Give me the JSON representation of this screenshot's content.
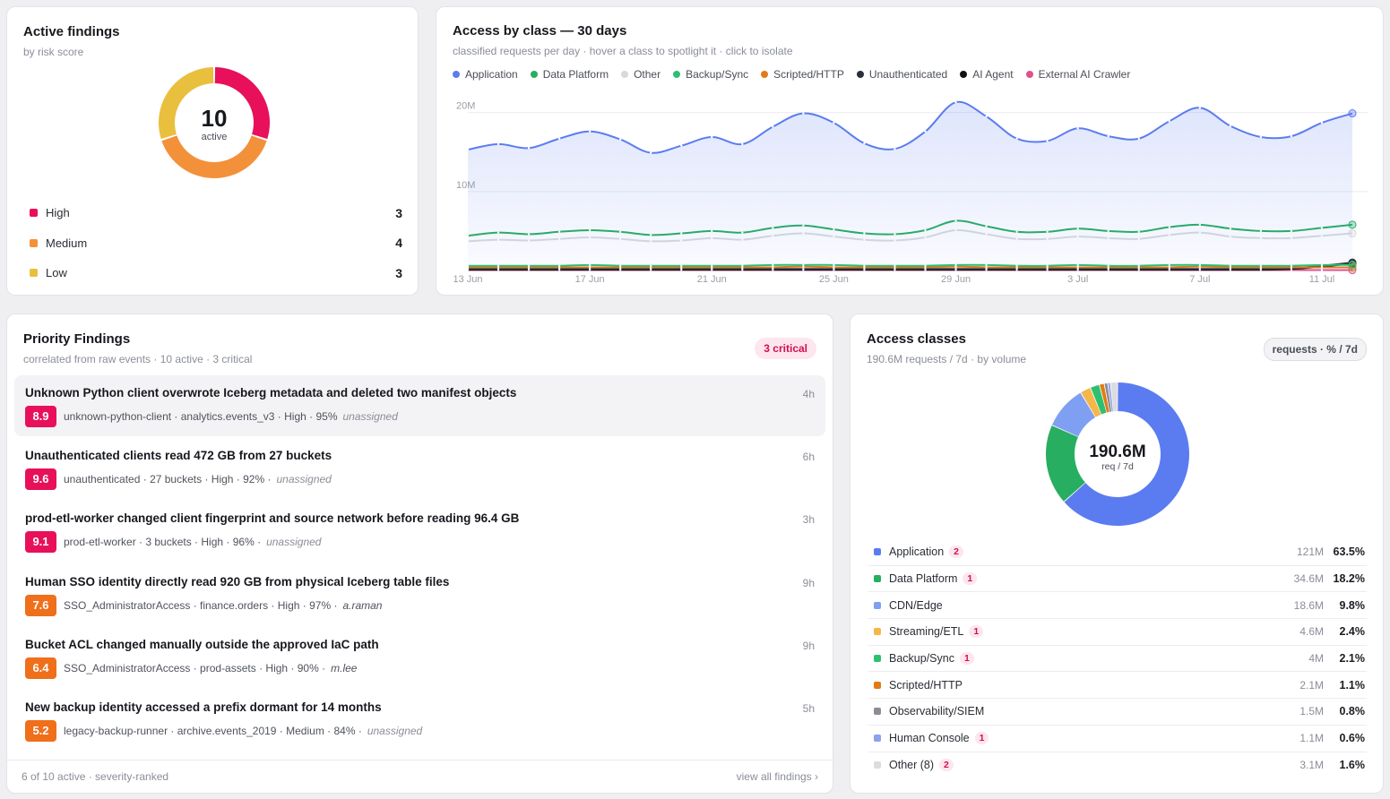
{
  "findings_card": {
    "title": "Active findings",
    "subtitle": "by risk score",
    "total": "10",
    "total_label": "active",
    "levels": [
      {
        "label": "High",
        "count": "3",
        "color": "#e8105a",
        "value": 3
      },
      {
        "label": "Medium",
        "count": "4",
        "color": "#f3913a",
        "value": 4
      },
      {
        "label": "Low",
        "count": "3",
        "color": "#e9bf3e",
        "value": 3
      }
    ]
  },
  "access_chart": {
    "title": "Access by class — 30 days",
    "subtitle": "classified requests per day · hover a class to spotlight it · click to isolate",
    "legend": [
      {
        "label": "Application",
        "color": "#5b7cf0"
      },
      {
        "label": "Data Platform",
        "color": "#27ae60"
      },
      {
        "label": "Other",
        "color": "#d9d9dc"
      },
      {
        "label": "Backup/Sync",
        "color": "#2fbf71"
      },
      {
        "label": "Scripted/HTTP",
        "color": "#e07b16"
      },
      {
        "label": "Unauthenticated",
        "color": "#2b2f3a"
      },
      {
        "label": "AI Agent",
        "color": "#111111"
      },
      {
        "label": "External AI Crawler",
        "color": "#e0508f"
      }
    ]
  },
  "chart_data": {
    "type": "area",
    "title": "Access by class — 30 days",
    "x": [
      "13 Jun",
      "14 Jun",
      "15 Jun",
      "16 Jun",
      "17 Jun",
      "18 Jun",
      "19 Jun",
      "20 Jun",
      "21 Jun",
      "22 Jun",
      "23 Jun",
      "24 Jun",
      "25 Jun",
      "26 Jun",
      "27 Jun",
      "28 Jun",
      "29 Jun",
      "30 Jun",
      "1 Jul",
      "2 Jul",
      "3 Jul",
      "4 Jul",
      "5 Jul",
      "6 Jul",
      "7 Jul",
      "8 Jul",
      "9 Jul",
      "10 Jul",
      "11 Jul",
      "12 Jul"
    ],
    "x_ticks": [
      "13 Jun",
      "17 Jun",
      "21 Jun",
      "25 Jun",
      "29 Jun",
      "3 Jul",
      "7 Jul",
      "11 Jul"
    ],
    "y_ticks": [
      "10M",
      "20M"
    ],
    "ylim": [
      0,
      22
    ],
    "unit": "M requests",
    "series": [
      {
        "name": "Application",
        "color": "#5b7cf0",
        "values": [
          15.3,
          16.0,
          15.5,
          16.7,
          17.6,
          16.6,
          14.9,
          15.8,
          16.9,
          16.0,
          18.2,
          19.9,
          18.7,
          16.1,
          15.4,
          17.6,
          21.3,
          19.5,
          16.7,
          16.4,
          18.0,
          17.0,
          16.7,
          18.9,
          20.6,
          18.3,
          16.9,
          17.0,
          18.7,
          19.9
        ]
      },
      {
        "name": "Data Platform",
        "color": "#27ae60",
        "values": [
          4.4,
          4.8,
          4.6,
          4.9,
          5.1,
          4.9,
          4.5,
          4.7,
          5.0,
          4.8,
          5.4,
          5.7,
          5.2,
          4.7,
          4.6,
          5.1,
          6.3,
          5.6,
          4.9,
          4.9,
          5.3,
          5.0,
          4.9,
          5.5,
          5.8,
          5.3,
          5.0,
          5.0,
          5.4,
          5.8
        ]
      },
      {
        "name": "Other",
        "color": "#d9d9dc",
        "values": [
          3.7,
          3.9,
          3.8,
          4.0,
          4.2,
          4.0,
          3.7,
          3.8,
          4.1,
          3.9,
          4.4,
          4.7,
          4.3,
          3.9,
          3.8,
          4.2,
          5.1,
          4.6,
          4.0,
          4.0,
          4.3,
          4.1,
          4.0,
          4.5,
          4.8,
          4.3,
          4.1,
          4.1,
          4.4,
          4.7
        ]
      },
      {
        "name": "Backup/Sync",
        "color": "#2fbf71",
        "values": [
          0.6,
          0.6,
          0.6,
          0.6,
          0.7,
          0.6,
          0.6,
          0.6,
          0.6,
          0.6,
          0.7,
          0.7,
          0.7,
          0.6,
          0.6,
          0.6,
          0.7,
          0.7,
          0.6,
          0.6,
          0.7,
          0.6,
          0.6,
          0.7,
          0.7,
          0.6,
          0.6,
          0.6,
          0.7,
          0.7
        ]
      },
      {
        "name": "Scripted/HTTP",
        "color": "#e07b16",
        "values": [
          0.4,
          0.4,
          0.4,
          0.4,
          0.4,
          0.4,
          0.4,
          0.4,
          0.4,
          0.4,
          0.4,
          0.5,
          0.4,
          0.4,
          0.4,
          0.4,
          0.5,
          0.4,
          0.4,
          0.4,
          0.4,
          0.4,
          0.4,
          0.4,
          0.5,
          0.4,
          0.4,
          0.4,
          0.4,
          0.4
        ]
      },
      {
        "name": "Unauthenticated",
        "color": "#2b2f3a",
        "values": [
          0.2,
          0.2,
          0.2,
          0.2,
          0.2,
          0.2,
          0.2,
          0.2,
          0.2,
          0.2,
          0.2,
          0.2,
          0.2,
          0.2,
          0.2,
          0.2,
          0.2,
          0.2,
          0.2,
          0.2,
          0.2,
          0.2,
          0.2,
          0.2,
          0.2,
          0.2,
          0.2,
          0.3,
          0.6,
          1.0
        ]
      },
      {
        "name": "AI Agent",
        "color": "#111111",
        "values": [
          0.1,
          0.1,
          0.1,
          0.1,
          0.1,
          0.1,
          0.1,
          0.1,
          0.1,
          0.1,
          0.1,
          0.1,
          0.1,
          0.1,
          0.1,
          0.1,
          0.1,
          0.1,
          0.1,
          0.1,
          0.1,
          0.1,
          0.1,
          0.1,
          0.1,
          0.1,
          0.1,
          0.2,
          0.5,
          0.9
        ]
      },
      {
        "name": "External AI Crawler",
        "color": "#e0508f",
        "values": [
          0.05,
          0.05,
          0.05,
          0.05,
          0.05,
          0.05,
          0.05,
          0.05,
          0.05,
          0.05,
          0.05,
          0.05,
          0.05,
          0.05,
          0.05,
          0.05,
          0.05,
          0.05,
          0.05,
          0.05,
          0.05,
          0.05,
          0.05,
          0.05,
          0.05,
          0.05,
          0.05,
          0.05,
          0.05,
          0.05
        ]
      }
    ]
  },
  "priority": {
    "title": "Priority Findings",
    "subtitle": "correlated from raw events · 10 active · 3 critical",
    "critical_badge": "3 critical",
    "items": [
      {
        "title": "Unknown Python client overwrote Iceberg metadata and deleted two manifest objects",
        "age": "4h",
        "score": "8.9",
        "score_color": "#e8105a",
        "meta": "unknown-python-client · analytics.events_v3 · High · 95%",
        "assignee": "unassigned",
        "assigned": false
      },
      {
        "title": "Unauthenticated clients read 472 GB from 27 buckets",
        "age": "6h",
        "score": "9.6",
        "score_color": "#e8105a",
        "meta": "unauthenticated · 27 buckets · High · 92% ·",
        "assignee": "unassigned",
        "assigned": false
      },
      {
        "title": "prod-etl-worker changed client fingerprint and source network before reading 96.4 GB",
        "age": "3h",
        "score": "9.1",
        "score_color": "#e8105a",
        "meta": "prod-etl-worker · 3 buckets · High · 96% ·",
        "assignee": "unassigned",
        "assigned": false
      },
      {
        "title": "Human SSO identity directly read 920 GB from physical Iceberg table files",
        "age": "9h",
        "score": "7.6",
        "score_color": "#ef6f1a",
        "meta": "SSO_AdministratorAccess · finance.orders · High · 97% ·",
        "assignee": "a.raman",
        "assigned": true
      },
      {
        "title": "Bucket ACL changed manually outside the approved IaC path",
        "age": "9h",
        "score": "6.4",
        "score_color": "#ef6f1a",
        "meta": "SSO_AdministratorAccess · prod-assets · High · 90% ·",
        "assignee": "m.lee",
        "assigned": true
      },
      {
        "title": "New backup identity accessed a prefix dormant for 14 months",
        "age": "5h",
        "score": "5.2",
        "score_color": "#ef6f1a",
        "meta": "legacy-backup-runner · archive.events_2019 · Medium · 84% ·",
        "assignee": "unassigned",
        "assigned": false
      }
    ],
    "footer_left": "6 of 10 active · severity-ranked",
    "footer_link": "view all findings ›"
  },
  "classes": {
    "title": "Access classes",
    "subtitle": "190.6M requests / 7d · by volume",
    "unit_pill": "requests · % / 7d",
    "total": "190.6M",
    "total_label": "req / 7d",
    "rows": [
      {
        "name": "Application",
        "badge": "2",
        "volume": "121M",
        "pct": "63.5%",
        "value": 63.5,
        "color": "#5b7cf0"
      },
      {
        "name": "Data Platform",
        "badge": "1",
        "volume": "34.6M",
        "pct": "18.2%",
        "value": 18.2,
        "color": "#27ae60"
      },
      {
        "name": "CDN/Edge",
        "badge": "",
        "volume": "18.6M",
        "pct": "9.8%",
        "value": 9.8,
        "color": "#7f9ff2"
      },
      {
        "name": "Streaming/ETL",
        "badge": "1",
        "volume": "4.6M",
        "pct": "2.4%",
        "value": 2.4,
        "color": "#f5b74a"
      },
      {
        "name": "Backup/Sync",
        "badge": "1",
        "volume": "4M",
        "pct": "2.1%",
        "value": 2.1,
        "color": "#2fbf71"
      },
      {
        "name": "Scripted/HTTP",
        "badge": "",
        "volume": "2.1M",
        "pct": "1.1%",
        "value": 1.1,
        "color": "#e07b16"
      },
      {
        "name": "Observability/SIEM",
        "badge": "",
        "volume": "1.5M",
        "pct": "0.8%",
        "value": 0.8,
        "color": "#8c8c92"
      },
      {
        "name": "Human Console",
        "badge": "1",
        "volume": "1.1M",
        "pct": "0.6%",
        "value": 0.6,
        "color": "#8fa0ee"
      },
      {
        "name": "Other (8)",
        "badge": "2",
        "volume": "3.1M",
        "pct": "1.6%",
        "value": 1.6,
        "color": "#dcdcdf"
      }
    ]
  }
}
